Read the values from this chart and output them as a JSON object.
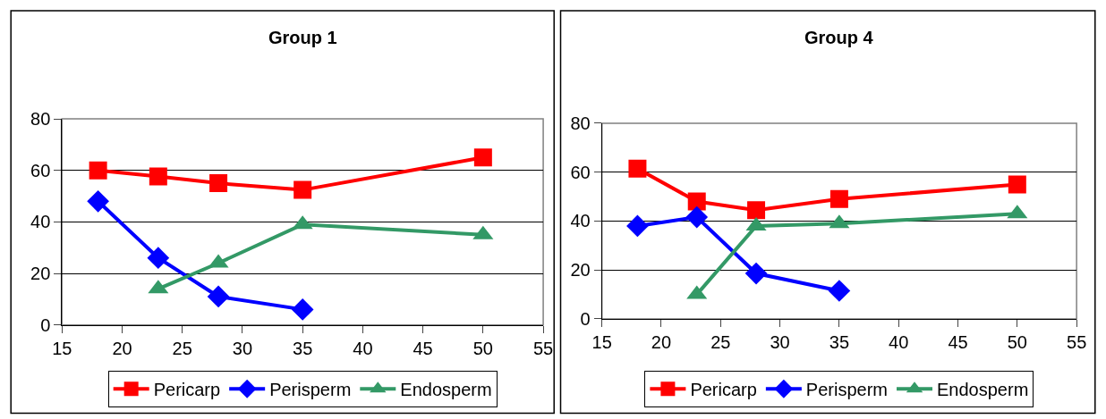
{
  "chart_data": [
    {
      "type": "line",
      "title": "Group 1",
      "x": [
        18,
        23,
        28,
        35,
        50
      ],
      "xlim": [
        15,
        55
      ],
      "xticks": [
        15,
        20,
        25,
        30,
        35,
        40,
        45,
        50,
        55
      ],
      "ylim": [
        0,
        80
      ],
      "yticks": [
        0,
        20,
        40,
        60,
        80
      ],
      "grid": "y",
      "legend": "bottom",
      "line_style": "solid",
      "series": [
        {
          "name": "Pericarp",
          "color": "#ff0000",
          "marker": "square",
          "values": [
            60,
            57.6,
            55,
            52.4,
            65
          ]
        },
        {
          "name": "Perisperm",
          "color": "#0000ff",
          "marker": "diamond",
          "values": [
            48,
            26,
            11,
            6,
            null
          ]
        },
        {
          "name": "Endosperm",
          "color": "#339966",
          "marker": "triangle",
          "values": [
            null,
            14,
            24,
            39,
            35
          ]
        }
      ]
    },
    {
      "type": "line",
      "title": "Group 4",
      "x": [
        18,
        23,
        28,
        35,
        50
      ],
      "xlim": [
        15,
        55
      ],
      "xticks": [
        15,
        20,
        25,
        30,
        35,
        40,
        45,
        50,
        55
      ],
      "ylim": [
        0,
        80
      ],
      "yticks": [
        0,
        20,
        40,
        60,
        80
      ],
      "grid": "y",
      "legend": "bottom",
      "line_style": "solid",
      "series": [
        {
          "name": "Pericarp",
          "color": "#ff0000",
          "marker": "square",
          "values": [
            61.4,
            48,
            44.5,
            49,
            55
          ]
        },
        {
          "name": "Perisperm",
          "color": "#0000ff",
          "marker": "diamond",
          "values": [
            38,
            41.6,
            18.6,
            11.5,
            null
          ]
        },
        {
          "name": "Endosperm",
          "color": "#339966",
          "marker": "triangle",
          "values": [
            null,
            10,
            38,
            39,
            43
          ]
        }
      ]
    }
  ]
}
